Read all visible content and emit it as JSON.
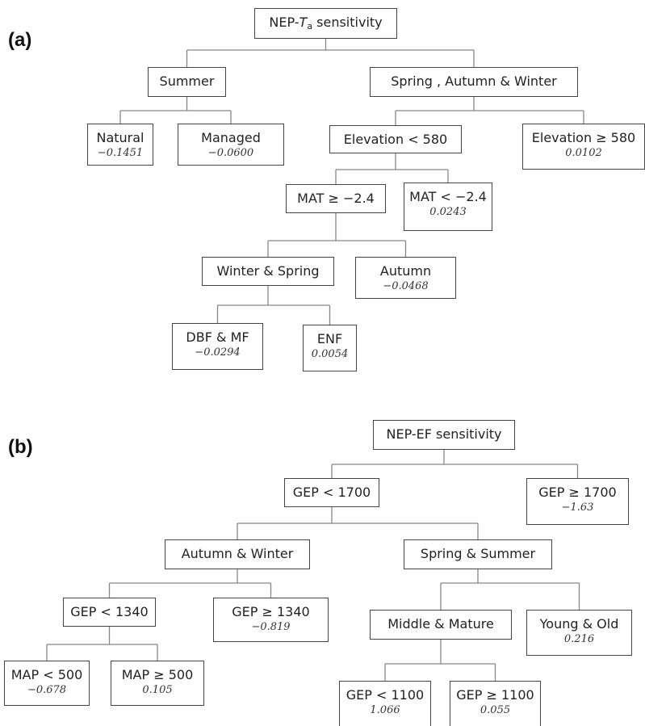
{
  "panels": [
    {
      "label": "(a)",
      "nodes": [
        {
          "label_parts": [
            "NEP-",
            "T",
            "a",
            " sensitivity"
          ]
        },
        {
          "label": "Summer"
        },
        {
          "label": "Spring , Autumn & Winter"
        },
        {
          "label": "Natural",
          "value": "−0.1451"
        },
        {
          "label": "Managed",
          "value": "−0.0600"
        },
        {
          "label": "Elevation < 580"
        },
        {
          "label": "Elevation ≥ 580",
          "value": "0.0102"
        },
        {
          "label": "MAT ≥ −2.4"
        },
        {
          "label": "MAT < −2.4",
          "value": "0.0243"
        },
        {
          "label": "Winter & Spring"
        },
        {
          "label": "Autumn",
          "value": "−0.0468"
        },
        {
          "label": "DBF & MF",
          "value": "−0.0294"
        },
        {
          "label": "ENF",
          "value": "0.0054"
        }
      ]
    },
    {
      "label": "(b)",
      "nodes": [
        {
          "label": "NEP-EF sensitivity"
        },
        {
          "label": "GEP < 1700"
        },
        {
          "label": "GEP ≥ 1700",
          "value": "−1.63"
        },
        {
          "label": "Autumn & Winter"
        },
        {
          "label": "Spring & Summer"
        },
        {
          "label": "GEP < 1340"
        },
        {
          "label": "GEP ≥ 1340",
          "value": "−0.819"
        },
        {
          "label": "Middle & Mature"
        },
        {
          "label": "Young & Old",
          "value": "0.216"
        },
        {
          "label": "MAP < 500",
          "value": "−0.678"
        },
        {
          "label": "MAP ≥ 500",
          "value": "0.105"
        },
        {
          "label": "GEP < 1100",
          "value": "1.066"
        },
        {
          "label": "GEP ≥ 1100",
          "value": "0.055"
        }
      ]
    }
  ]
}
